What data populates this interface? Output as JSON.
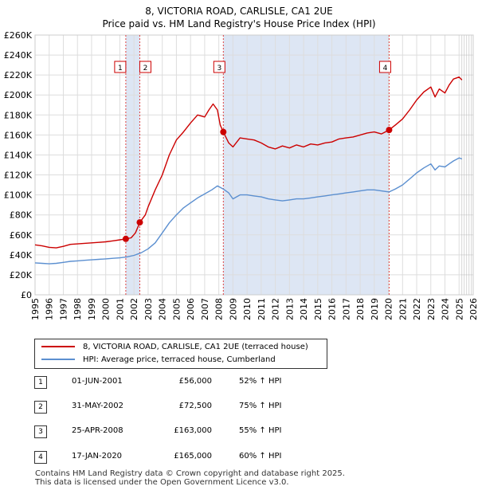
{
  "title_line1": "8, VICTORIA ROAD, CARLISLE, CA1 2UE",
  "title_line2": "Price paid vs. HM Land Registry's House Price Index (HPI)",
  "chart_data": {
    "type": "line",
    "xlim": [
      1995,
      2026
    ],
    "ylim": [
      0,
      260000
    ],
    "x_ticks": [
      1995,
      1996,
      1997,
      1998,
      1999,
      2000,
      2001,
      2002,
      2003,
      2004,
      2005,
      2006,
      2007,
      2008,
      2009,
      2010,
      2011,
      2012,
      2013,
      2014,
      2015,
      2016,
      2017,
      2018,
      2019,
      2020,
      2021,
      2022,
      2023,
      2024,
      2025,
      2026
    ],
    "y_ticks": [
      {
        "value": 0,
        "label": "£0"
      },
      {
        "value": 20000,
        "label": "£20K"
      },
      {
        "value": 40000,
        "label": "£40K"
      },
      {
        "value": 60000,
        "label": "£60K"
      },
      {
        "value": 80000,
        "label": "£80K"
      },
      {
        "value": 100000,
        "label": "£100K"
      },
      {
        "value": 120000,
        "label": "£120K"
      },
      {
        "value": 140000,
        "label": "£140K"
      },
      {
        "value": 160000,
        "label": "£160K"
      },
      {
        "value": 180000,
        "label": "£180K"
      },
      {
        "value": 200000,
        "label": "£200K"
      },
      {
        "value": 220000,
        "label": "£220K"
      },
      {
        "value": 240000,
        "label": "£240K"
      },
      {
        "value": 260000,
        "label": "£260K"
      }
    ],
    "shaded_spans": [
      [
        2001.42,
        2002.41
      ],
      [
        2008.32,
        2020.05
      ]
    ],
    "forecast_start": 2025.2,
    "series": [
      {
        "name": "8, VICTORIA ROAD, CARLISLE, CA1 2UE (terraced house)",
        "color": "#cc0000",
        "points": [
          [
            1995.0,
            50000
          ],
          [
            1995.5,
            49000
          ],
          [
            1996.0,
            47500
          ],
          [
            1996.5,
            47000
          ],
          [
            1997.0,
            48500
          ],
          [
            1997.5,
            50500
          ],
          [
            1998.0,
            51000
          ],
          [
            1998.5,
            51500
          ],
          [
            1999.0,
            52000
          ],
          [
            1999.5,
            52500
          ],
          [
            2000.0,
            53000
          ],
          [
            2000.5,
            54000
          ],
          [
            2001.0,
            55000
          ],
          [
            2001.42,
            56000
          ],
          [
            2001.8,
            57000
          ],
          [
            2002.1,
            62000
          ],
          [
            2002.41,
            72500
          ],
          [
            2002.8,
            80000
          ],
          [
            2003.0,
            88000
          ],
          [
            2003.5,
            105000
          ],
          [
            2004.0,
            120000
          ],
          [
            2004.5,
            140000
          ],
          [
            2005.0,
            155000
          ],
          [
            2005.5,
            163000
          ],
          [
            2006.0,
            172000
          ],
          [
            2006.5,
            180000
          ],
          [
            2007.0,
            178000
          ],
          [
            2007.3,
            185000
          ],
          [
            2007.6,
            191000
          ],
          [
            2007.9,
            185000
          ],
          [
            2008.1,
            170000
          ],
          [
            2008.32,
            163000
          ],
          [
            2008.7,
            152000
          ],
          [
            2009.0,
            148000
          ],
          [
            2009.5,
            157000
          ],
          [
            2010.0,
            156000
          ],
          [
            2010.5,
            155000
          ],
          [
            2011.0,
            152000
          ],
          [
            2011.5,
            148000
          ],
          [
            2012.0,
            146000
          ],
          [
            2012.5,
            149000
          ],
          [
            2013.0,
            147000
          ],
          [
            2013.5,
            150000
          ],
          [
            2014.0,
            148000
          ],
          [
            2014.5,
            151000
          ],
          [
            2015.0,
            150000
          ],
          [
            2015.5,
            152000
          ],
          [
            2016.0,
            153000
          ],
          [
            2016.5,
            156000
          ],
          [
            2017.0,
            157000
          ],
          [
            2017.5,
            158000
          ],
          [
            2018.0,
            160000
          ],
          [
            2018.5,
            162000
          ],
          [
            2019.0,
            163000
          ],
          [
            2019.5,
            161000
          ],
          [
            2020.05,
            165000
          ],
          [
            2020.5,
            170000
          ],
          [
            2021.0,
            176000
          ],
          [
            2021.5,
            185000
          ],
          [
            2022.0,
            195000
          ],
          [
            2022.5,
            203000
          ],
          [
            2023.0,
            208000
          ],
          [
            2023.3,
            198000
          ],
          [
            2023.6,
            206000
          ],
          [
            2024.0,
            202000
          ],
          [
            2024.3,
            210000
          ],
          [
            2024.6,
            216000
          ],
          [
            2025.0,
            218000
          ],
          [
            2025.2,
            215000
          ]
        ]
      },
      {
        "name": "HPI: Average price, terraced house, Cumberland",
        "color": "#5b8fd0",
        "points": [
          [
            1995.0,
            32000
          ],
          [
            1995.5,
            31500
          ],
          [
            1996.0,
            31000
          ],
          [
            1996.5,
            31500
          ],
          [
            1997.0,
            32500
          ],
          [
            1997.5,
            33500
          ],
          [
            1998.0,
            34000
          ],
          [
            1998.5,
            34500
          ],
          [
            1999.0,
            35000
          ],
          [
            1999.5,
            35500
          ],
          [
            2000.0,
            36000
          ],
          [
            2000.5,
            36500
          ],
          [
            2001.0,
            37000
          ],
          [
            2001.5,
            38000
          ],
          [
            2002.0,
            39500
          ],
          [
            2002.5,
            42000
          ],
          [
            2003.0,
            46000
          ],
          [
            2003.5,
            52000
          ],
          [
            2004.0,
            62000
          ],
          [
            2004.5,
            72000
          ],
          [
            2005.0,
            80000
          ],
          [
            2005.5,
            87000
          ],
          [
            2006.0,
            92000
          ],
          [
            2006.5,
            97000
          ],
          [
            2007.0,
            101000
          ],
          [
            2007.5,
            105000
          ],
          [
            2007.9,
            109000
          ],
          [
            2008.3,
            106000
          ],
          [
            2008.7,
            102000
          ],
          [
            2009.0,
            96000
          ],
          [
            2009.5,
            100000
          ],
          [
            2010.0,
            100000
          ],
          [
            2010.5,
            99000
          ],
          [
            2011.0,
            98000
          ],
          [
            2011.5,
            96000
          ],
          [
            2012.0,
            95000
          ],
          [
            2012.5,
            94000
          ],
          [
            2013.0,
            95000
          ],
          [
            2013.5,
            96000
          ],
          [
            2014.0,
            96000
          ],
          [
            2014.5,
            97000
          ],
          [
            2015.0,
            98000
          ],
          [
            2015.5,
            99000
          ],
          [
            2016.0,
            100000
          ],
          [
            2016.5,
            101000
          ],
          [
            2017.0,
            102000
          ],
          [
            2017.5,
            103000
          ],
          [
            2018.0,
            104000
          ],
          [
            2018.5,
            105000
          ],
          [
            2019.0,
            105000
          ],
          [
            2019.5,
            104000
          ],
          [
            2020.05,
            103000
          ],
          [
            2020.5,
            106000
          ],
          [
            2021.0,
            110000
          ],
          [
            2021.5,
            116000
          ],
          [
            2022.0,
            122000
          ],
          [
            2022.5,
            127000
          ],
          [
            2023.0,
            131000
          ],
          [
            2023.3,
            125000
          ],
          [
            2023.6,
            129000
          ],
          [
            2024.0,
            128000
          ],
          [
            2024.3,
            131000
          ],
          [
            2024.6,
            134000
          ],
          [
            2025.0,
            137000
          ],
          [
            2025.2,
            136000
          ]
        ]
      }
    ],
    "sales": [
      {
        "num": "1",
        "x": 2001.42,
        "y": 56000,
        "date": "01-JUN-2001",
        "price": "£56,000",
        "hpi": "52% ↑ HPI"
      },
      {
        "num": "2",
        "x": 2002.41,
        "y": 72500,
        "date": "31-MAY-2002",
        "price": "£72,500",
        "hpi": "75% ↑ HPI"
      },
      {
        "num": "3",
        "x": 2008.32,
        "y": 163000,
        "date": "25-APR-2008",
        "price": "£163,000",
        "hpi": "55% ↑ HPI"
      },
      {
        "num": "4",
        "x": 2020.05,
        "y": 165000,
        "date": "17-JAN-2020",
        "price": "£165,000",
        "hpi": "60% ↑ HPI"
      }
    ]
  },
  "legend": {
    "red_label": "8, VICTORIA ROAD, CARLISLE, CA1 2UE (terraced house)",
    "blue_label": "HPI: Average price, terraced house, Cumberland"
  },
  "footer": {
    "line1": "Contains HM Land Registry data © Crown copyright and database right 2025.",
    "line2": "This data is licensed under the Open Government Licence v3.0."
  },
  "colors": {
    "red": "#cc0000",
    "blue": "#5b8fd0",
    "shade": "#dde6f4",
    "grid": "#dddddd"
  }
}
